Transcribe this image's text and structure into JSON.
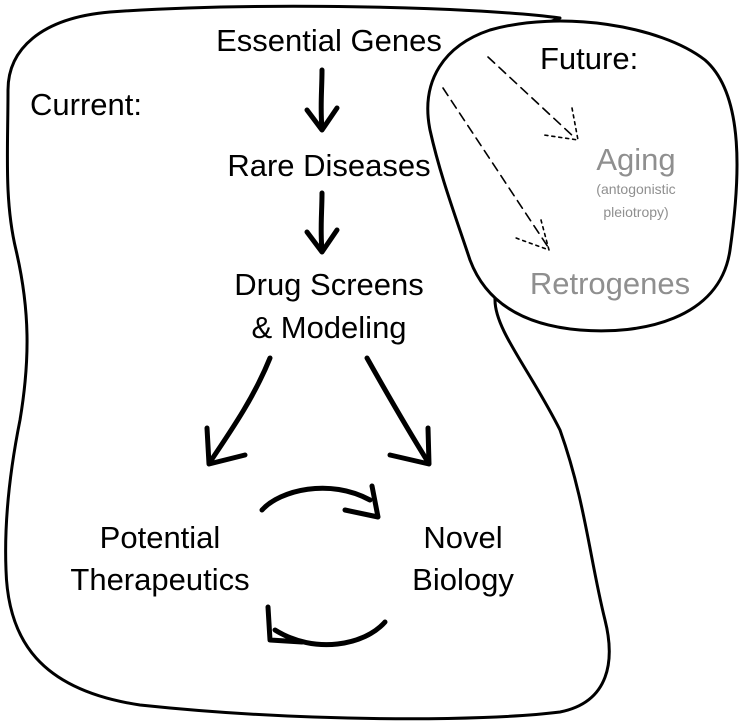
{
  "diagram": {
    "current_label": "Current:",
    "future_label": "Future:",
    "nodes": {
      "essential_genes": "Essential Genes",
      "rare_diseases": "Rare Diseases",
      "drug_screens_line1": "Drug Screens",
      "drug_screens_line2": "& Modeling",
      "potential_therapeutics_line1": "Potential",
      "potential_therapeutics_line2": "Therapeutics",
      "novel_biology_line1": "Novel",
      "novel_biology_line2": "Biology",
      "aging": "Aging",
      "aging_note_line1": "(antogonistic",
      "aging_note_line2": "pleiotropy)",
      "retrogenes": "Retrogenes"
    },
    "colors": {
      "ink": "#000000",
      "future_text": "#8f8f8f",
      "background": "#ffffff"
    }
  }
}
